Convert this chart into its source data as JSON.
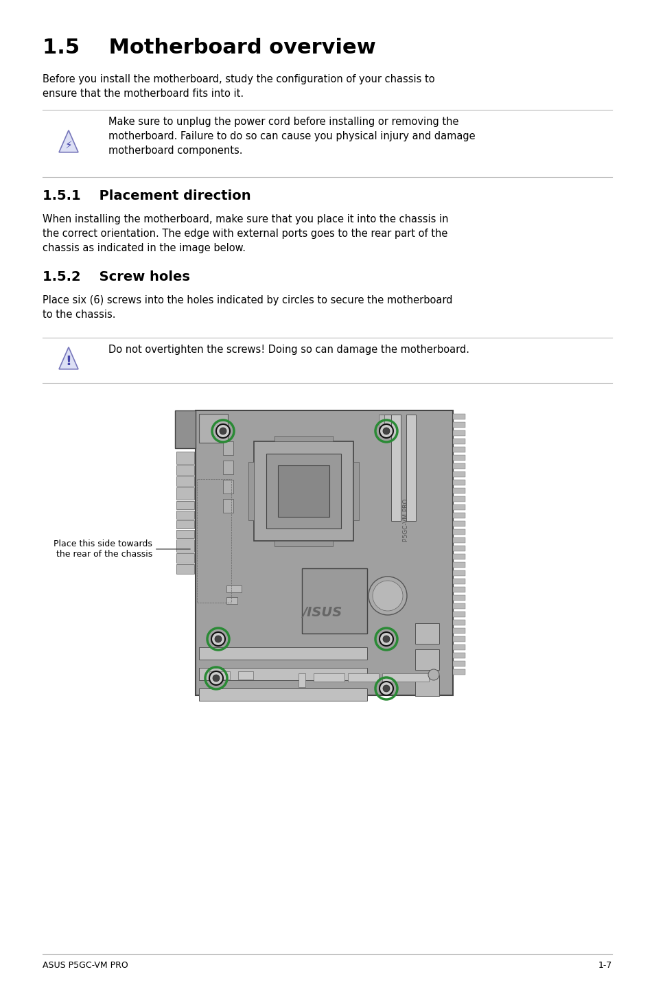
{
  "title": "1.5    Motherboard overview",
  "section1_title": "1.5.1    Placement direction",
  "section2_title": "1.5.2    Screw holes",
  "intro_text": "Before you install the motherboard, study the configuration of your chassis to\nensure that the motherboard fits into it.",
  "warning1_text": "Make sure to unplug the power cord before installing or removing the\nmotherboard. Failure to do so can cause you physical injury and damage\nmotherboard components.",
  "section1_text": "When installing the motherboard, make sure that you place it into the chassis in\nthe correct orientation. The edge with external ports goes to the rear part of the\nchassis as indicated in the image below.",
  "section2_text": "Place six (6) screws into the holes indicated by circles to secure the motherboard\nto the chassis.",
  "warning2_text": "Do not overtighten the screws! Doing so can damage the motherboard.",
  "annotation_text": "Place this side towards\nthe rear of the chassis",
  "footer_left": "ASUS P5GC-VM PRO",
  "footer_right": "1-7",
  "bg_color": "#ffffff",
  "text_color": "#000000",
  "line_color": "#bbbbbb",
  "board_color": "#a0a0a0",
  "board_edge_color": "#555555",
  "screw_green": "#2a8a35",
  "screw_black": "#111111",
  "icon_fill": "#dde0f5",
  "icon_edge": "#7777bb",
  "icon_text": "#4444aa"
}
